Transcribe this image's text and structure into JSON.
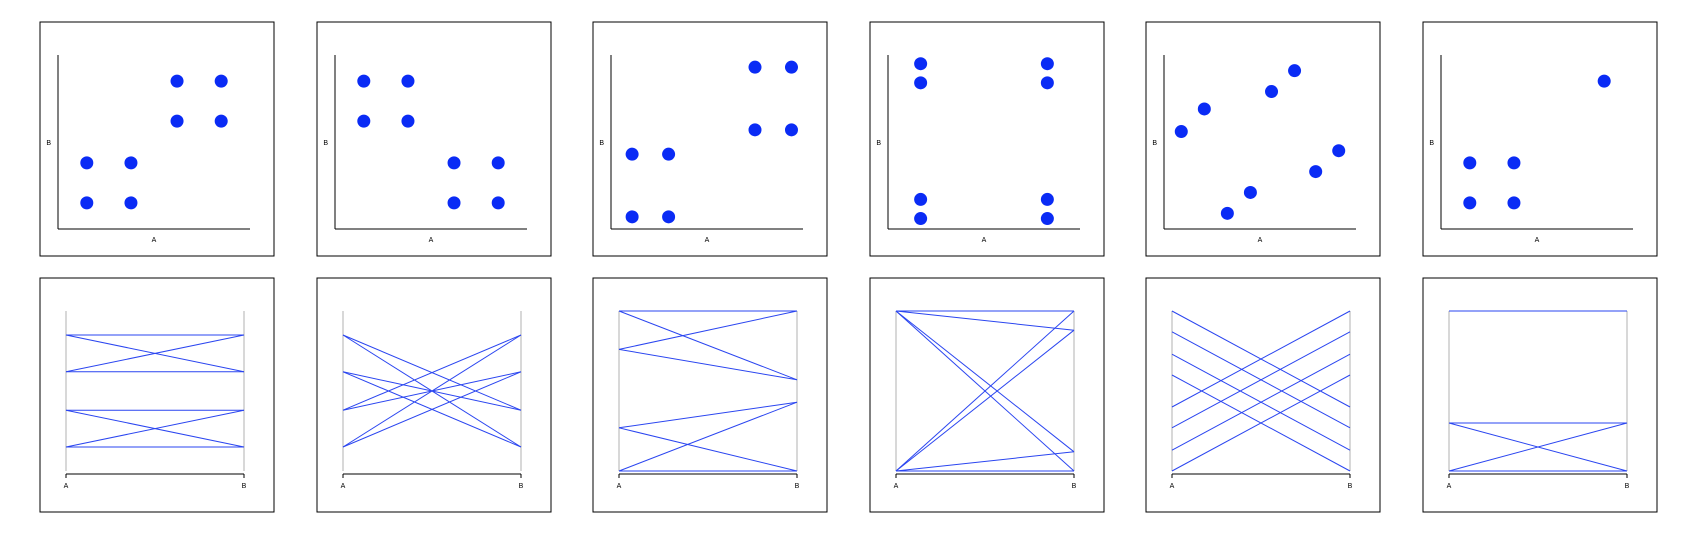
{
  "colors": {
    "marker": "#0a2bf5",
    "line": "#2a45f0",
    "frame": "#000000",
    "pc_axis": "#b0b0b0"
  },
  "chart_data": [
    {
      "type": "scatter",
      "xlabel": "A",
      "ylabel": "B",
      "grid": false,
      "xlim": [
        0,
        1
      ],
      "ylim": [
        0,
        1
      ],
      "points": [
        [
          0.15,
          0.15
        ],
        [
          0.15,
          0.38
        ],
        [
          0.38,
          0.15
        ],
        [
          0.38,
          0.38
        ],
        [
          0.62,
          0.62
        ],
        [
          0.62,
          0.85
        ],
        [
          0.85,
          0.62
        ],
        [
          0.85,
          0.85
        ]
      ]
    },
    {
      "type": "scatter",
      "xlabel": "A",
      "ylabel": "B",
      "grid": false,
      "xlim": [
        0,
        1
      ],
      "ylim": [
        0,
        1
      ],
      "points": [
        [
          0.15,
          0.62
        ],
        [
          0.15,
          0.85
        ],
        [
          0.38,
          0.62
        ],
        [
          0.38,
          0.85
        ],
        [
          0.62,
          0.15
        ],
        [
          0.62,
          0.38
        ],
        [
          0.85,
          0.15
        ],
        [
          0.85,
          0.38
        ]
      ]
    },
    {
      "type": "scatter",
      "xlabel": "A",
      "ylabel": "B",
      "grid": false,
      "xlim": [
        0,
        1
      ],
      "ylim": [
        0,
        1
      ],
      "points": [
        [
          0.11,
          0.07
        ],
        [
          0.11,
          0.43
        ],
        [
          0.3,
          0.07
        ],
        [
          0.3,
          0.43
        ],
        [
          0.75,
          0.57
        ],
        [
          0.75,
          0.93
        ],
        [
          0.94,
          0.57
        ],
        [
          0.94,
          0.93
        ]
      ]
    },
    {
      "type": "scatter",
      "xlabel": "A",
      "ylabel": "B",
      "grid": false,
      "xlim": [
        0,
        1
      ],
      "ylim": [
        0,
        1
      ],
      "points": [
        [
          0.17,
          0.06
        ],
        [
          0.17,
          0.17
        ],
        [
          0.17,
          0.84
        ],
        [
          0.17,
          0.95
        ],
        [
          0.83,
          0.06
        ],
        [
          0.83,
          0.17
        ],
        [
          0.83,
          0.84
        ],
        [
          0.83,
          0.95
        ]
      ]
    },
    {
      "type": "scatter",
      "xlabel": "A",
      "ylabel": "B",
      "grid": false,
      "xlim": [
        0,
        1
      ],
      "ylim": [
        0,
        1
      ],
      "points": [
        [
          0.09,
          0.56
        ],
        [
          0.21,
          0.69
        ],
        [
          0.33,
          0.09
        ],
        [
          0.45,
          0.21
        ],
        [
          0.56,
          0.79
        ],
        [
          0.68,
          0.91
        ],
        [
          0.79,
          0.33
        ],
        [
          0.91,
          0.45
        ]
      ]
    },
    {
      "type": "scatter",
      "xlabel": "A",
      "ylabel": "B",
      "grid": false,
      "xlim": [
        0,
        1
      ],
      "ylim": [
        0,
        1
      ],
      "points": [
        [
          0.15,
          0.15
        ],
        [
          0.15,
          0.38
        ],
        [
          0.38,
          0.15
        ],
        [
          0.38,
          0.38
        ],
        [
          0.85,
          0.85
        ]
      ]
    },
    {
      "type": "parallel_coordinates",
      "axes": [
        "A",
        "B"
      ],
      "ylim": [
        0,
        1
      ],
      "lines": [
        [
          0.15,
          0.15
        ],
        [
          0.15,
          0.38
        ],
        [
          0.38,
          0.15
        ],
        [
          0.38,
          0.38
        ],
        [
          0.62,
          0.62
        ],
        [
          0.62,
          0.85
        ],
        [
          0.85,
          0.62
        ],
        [
          0.85,
          0.85
        ]
      ]
    },
    {
      "type": "parallel_coordinates",
      "axes": [
        "A",
        "B"
      ],
      "ylim": [
        0,
        1
      ],
      "lines": [
        [
          0.15,
          0.62
        ],
        [
          0.15,
          0.85
        ],
        [
          0.38,
          0.62
        ],
        [
          0.38,
          0.85
        ],
        [
          0.62,
          0.15
        ],
        [
          0.62,
          0.38
        ],
        [
          0.85,
          0.15
        ],
        [
          0.85,
          0.38
        ]
      ]
    },
    {
      "type": "parallel_coordinates",
      "axes": [
        "A",
        "B"
      ],
      "ylim": [
        0,
        1
      ],
      "lines": [
        [
          0.0,
          0.0
        ],
        [
          0.0,
          0.43
        ],
        [
          0.27,
          0.0
        ],
        [
          0.27,
          0.43
        ],
        [
          0.76,
          0.57
        ],
        [
          0.76,
          1.0
        ],
        [
          1.0,
          0.57
        ],
        [
          1.0,
          1.0
        ]
      ]
    },
    {
      "type": "parallel_coordinates",
      "axes": [
        "A",
        "B"
      ],
      "ylim": [
        0,
        1
      ],
      "lines": [
        [
          0.0,
          0.0
        ],
        [
          0.0,
          0.12
        ],
        [
          0.0,
          0.88
        ],
        [
          0.0,
          1.0
        ],
        [
          1.0,
          0.0
        ],
        [
          1.0,
          0.12
        ],
        [
          1.0,
          0.88
        ],
        [
          1.0,
          1.0
        ]
      ]
    },
    {
      "type": "parallel_coordinates",
      "axes": [
        "A",
        "B"
      ],
      "ylim": [
        0,
        1
      ],
      "lines": [
        [
          0.0,
          0.6
        ],
        [
          0.13,
          0.73
        ],
        [
          0.27,
          0.87
        ],
        [
          0.4,
          1.0
        ],
        [
          0.6,
          0.0
        ],
        [
          0.73,
          0.13
        ],
        [
          0.87,
          0.27
        ],
        [
          1.0,
          0.4
        ]
      ]
    },
    {
      "type": "parallel_coordinates",
      "axes": [
        "A",
        "B"
      ],
      "ylim": [
        0,
        1
      ],
      "lines": [
        [
          0.0,
          0.0
        ],
        [
          0.0,
          0.3
        ],
        [
          0.3,
          0.0
        ],
        [
          0.3,
          0.3
        ],
        [
          1.0,
          1.0
        ]
      ]
    }
  ]
}
